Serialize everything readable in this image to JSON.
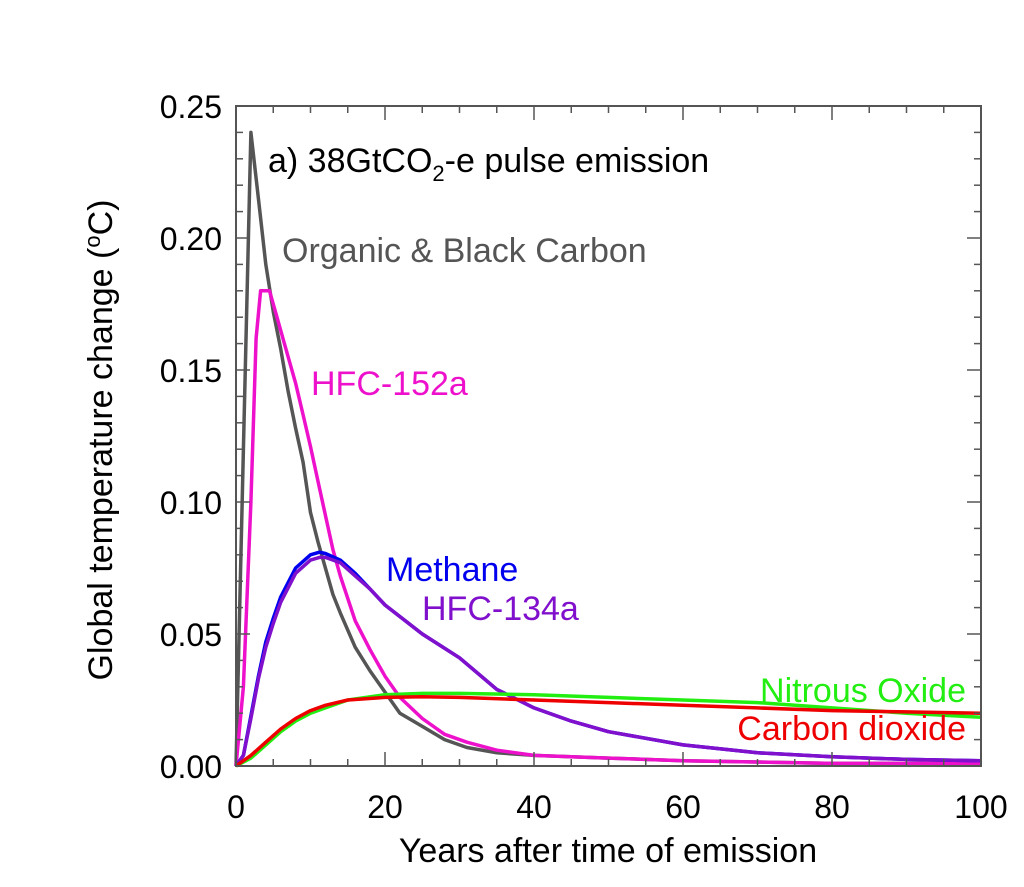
{
  "chart_data": {
    "type": "line",
    "title": "a) 38GtCO",
    "title_sub": "2",
    "title_tail": "-e pulse emission",
    "xlabel": "Years after time of emission",
    "ylabel": "Global temperature change (",
    "ylabel_sup": "o",
    "ylabel_tail": "C)",
    "xlim": [
      0,
      100
    ],
    "ylim": [
      0,
      0.25
    ],
    "xticks": [
      "0",
      "20",
      "40",
      "60",
      "80",
      "100"
    ],
    "yticks": [
      "0.00",
      "0.05",
      "0.10",
      "0.15",
      "0.20",
      "0.25"
    ],
    "grid": false,
    "series": [
      {
        "name": "Organic & Black Carbon",
        "color": "#555555",
        "x": [
          0,
          1,
          2,
          3,
          4,
          5,
          6,
          7,
          8,
          9,
          10,
          11,
          12,
          13,
          14,
          16,
          18,
          20,
          22,
          25,
          28,
          31,
          35,
          40,
          50,
          60,
          70,
          80,
          100
        ],
        "y": [
          0,
          0.12,
          0.24,
          0.215,
          0.19,
          0.172,
          0.158,
          0.142,
          0.128,
          0.115,
          0.096,
          0.085,
          0.075,
          0.065,
          0.058,
          0.045,
          0.036,
          0.028,
          0.02,
          0.015,
          0.01,
          0.007,
          0.005,
          0.004,
          0.003,
          0.002,
          0.0015,
          0.001,
          0.001
        ]
      },
      {
        "name": "HFC-152a",
        "color": "#ee11cc",
        "x": [
          0,
          1,
          2,
          2.7,
          3.3,
          4.5,
          5.5,
          6.5,
          8,
          9,
          10,
          11,
          12,
          13,
          14,
          16,
          18,
          20,
          22,
          25,
          28,
          31,
          35,
          40,
          50,
          60,
          80,
          100
        ],
        "y": [
          0,
          0.03,
          0.1,
          0.162,
          0.18,
          0.18,
          0.17,
          0.16,
          0.145,
          0.133,
          0.121,
          0.108,
          0.095,
          0.082,
          0.072,
          0.055,
          0.044,
          0.034,
          0.026,
          0.018,
          0.012,
          0.009,
          0.006,
          0.004,
          0.003,
          0.002,
          0.001,
          0.001
        ]
      },
      {
        "name": "Methane",
        "color": "#0000ee",
        "x": [
          0,
          1,
          2,
          3,
          4,
          5,
          6,
          8,
          10,
          11.2,
          12,
          14,
          16,
          18,
          20,
          25,
          30,
          35,
          40,
          45,
          50,
          60,
          70,
          80,
          90,
          100
        ],
        "y": [
          0,
          0.004,
          0.019,
          0.034,
          0.047,
          0.056,
          0.064,
          0.075,
          0.08,
          0.081,
          0.0805,
          0.078,
          0.073,
          0.067,
          0.061,
          0.05,
          0.041,
          0.029,
          0.022,
          0.017,
          0.013,
          0.008,
          0.005,
          0.0035,
          0.0025,
          0.002
        ]
      },
      {
        "name": "HFC-134a",
        "color": "#8010cc",
        "x": [
          0,
          1,
          2,
          3,
          4,
          5,
          6,
          8,
          10,
          11.2,
          12,
          14,
          16,
          18,
          20,
          25,
          30,
          35,
          40,
          45,
          50,
          60,
          70,
          80,
          90,
          100
        ],
        "y": [
          0,
          0.004,
          0.018,
          0.033,
          0.045,
          0.054,
          0.062,
          0.073,
          0.078,
          0.079,
          0.079,
          0.077,
          0.072,
          0.067,
          0.061,
          0.05,
          0.041,
          0.029,
          0.022,
          0.017,
          0.013,
          0.008,
          0.005,
          0.0035,
          0.0025,
          0.002
        ]
      },
      {
        "name": "Nitrous Oxide",
        "color": "#22ee11",
        "x": [
          0,
          2,
          4,
          6,
          8,
          10,
          12,
          15,
          20,
          25,
          30,
          40,
          50,
          60,
          70,
          80,
          90,
          100
        ],
        "y": [
          0,
          0.003,
          0.008,
          0.013,
          0.017,
          0.02,
          0.022,
          0.025,
          0.027,
          0.0275,
          0.0275,
          0.027,
          0.026,
          0.025,
          0.024,
          0.022,
          0.02,
          0.0185
        ]
      },
      {
        "name": "Carbon dioxide",
        "color": "#ee0000",
        "x": [
          0,
          2,
          4,
          6,
          8,
          10,
          12,
          15,
          20,
          25,
          30,
          40,
          50,
          60,
          70,
          80,
          90,
          100
        ],
        "y": [
          0,
          0.004,
          0.009,
          0.014,
          0.018,
          0.021,
          0.023,
          0.025,
          0.026,
          0.0262,
          0.026,
          0.025,
          0.024,
          0.023,
          0.022,
          0.021,
          0.0205,
          0.02
        ]
      }
    ],
    "annotations": [
      "Organic & Black Carbon",
      "HFC-152a",
      "Methane",
      "HFC-134a",
      "Nitrous Oxide",
      "Carbon dioxide"
    ]
  }
}
